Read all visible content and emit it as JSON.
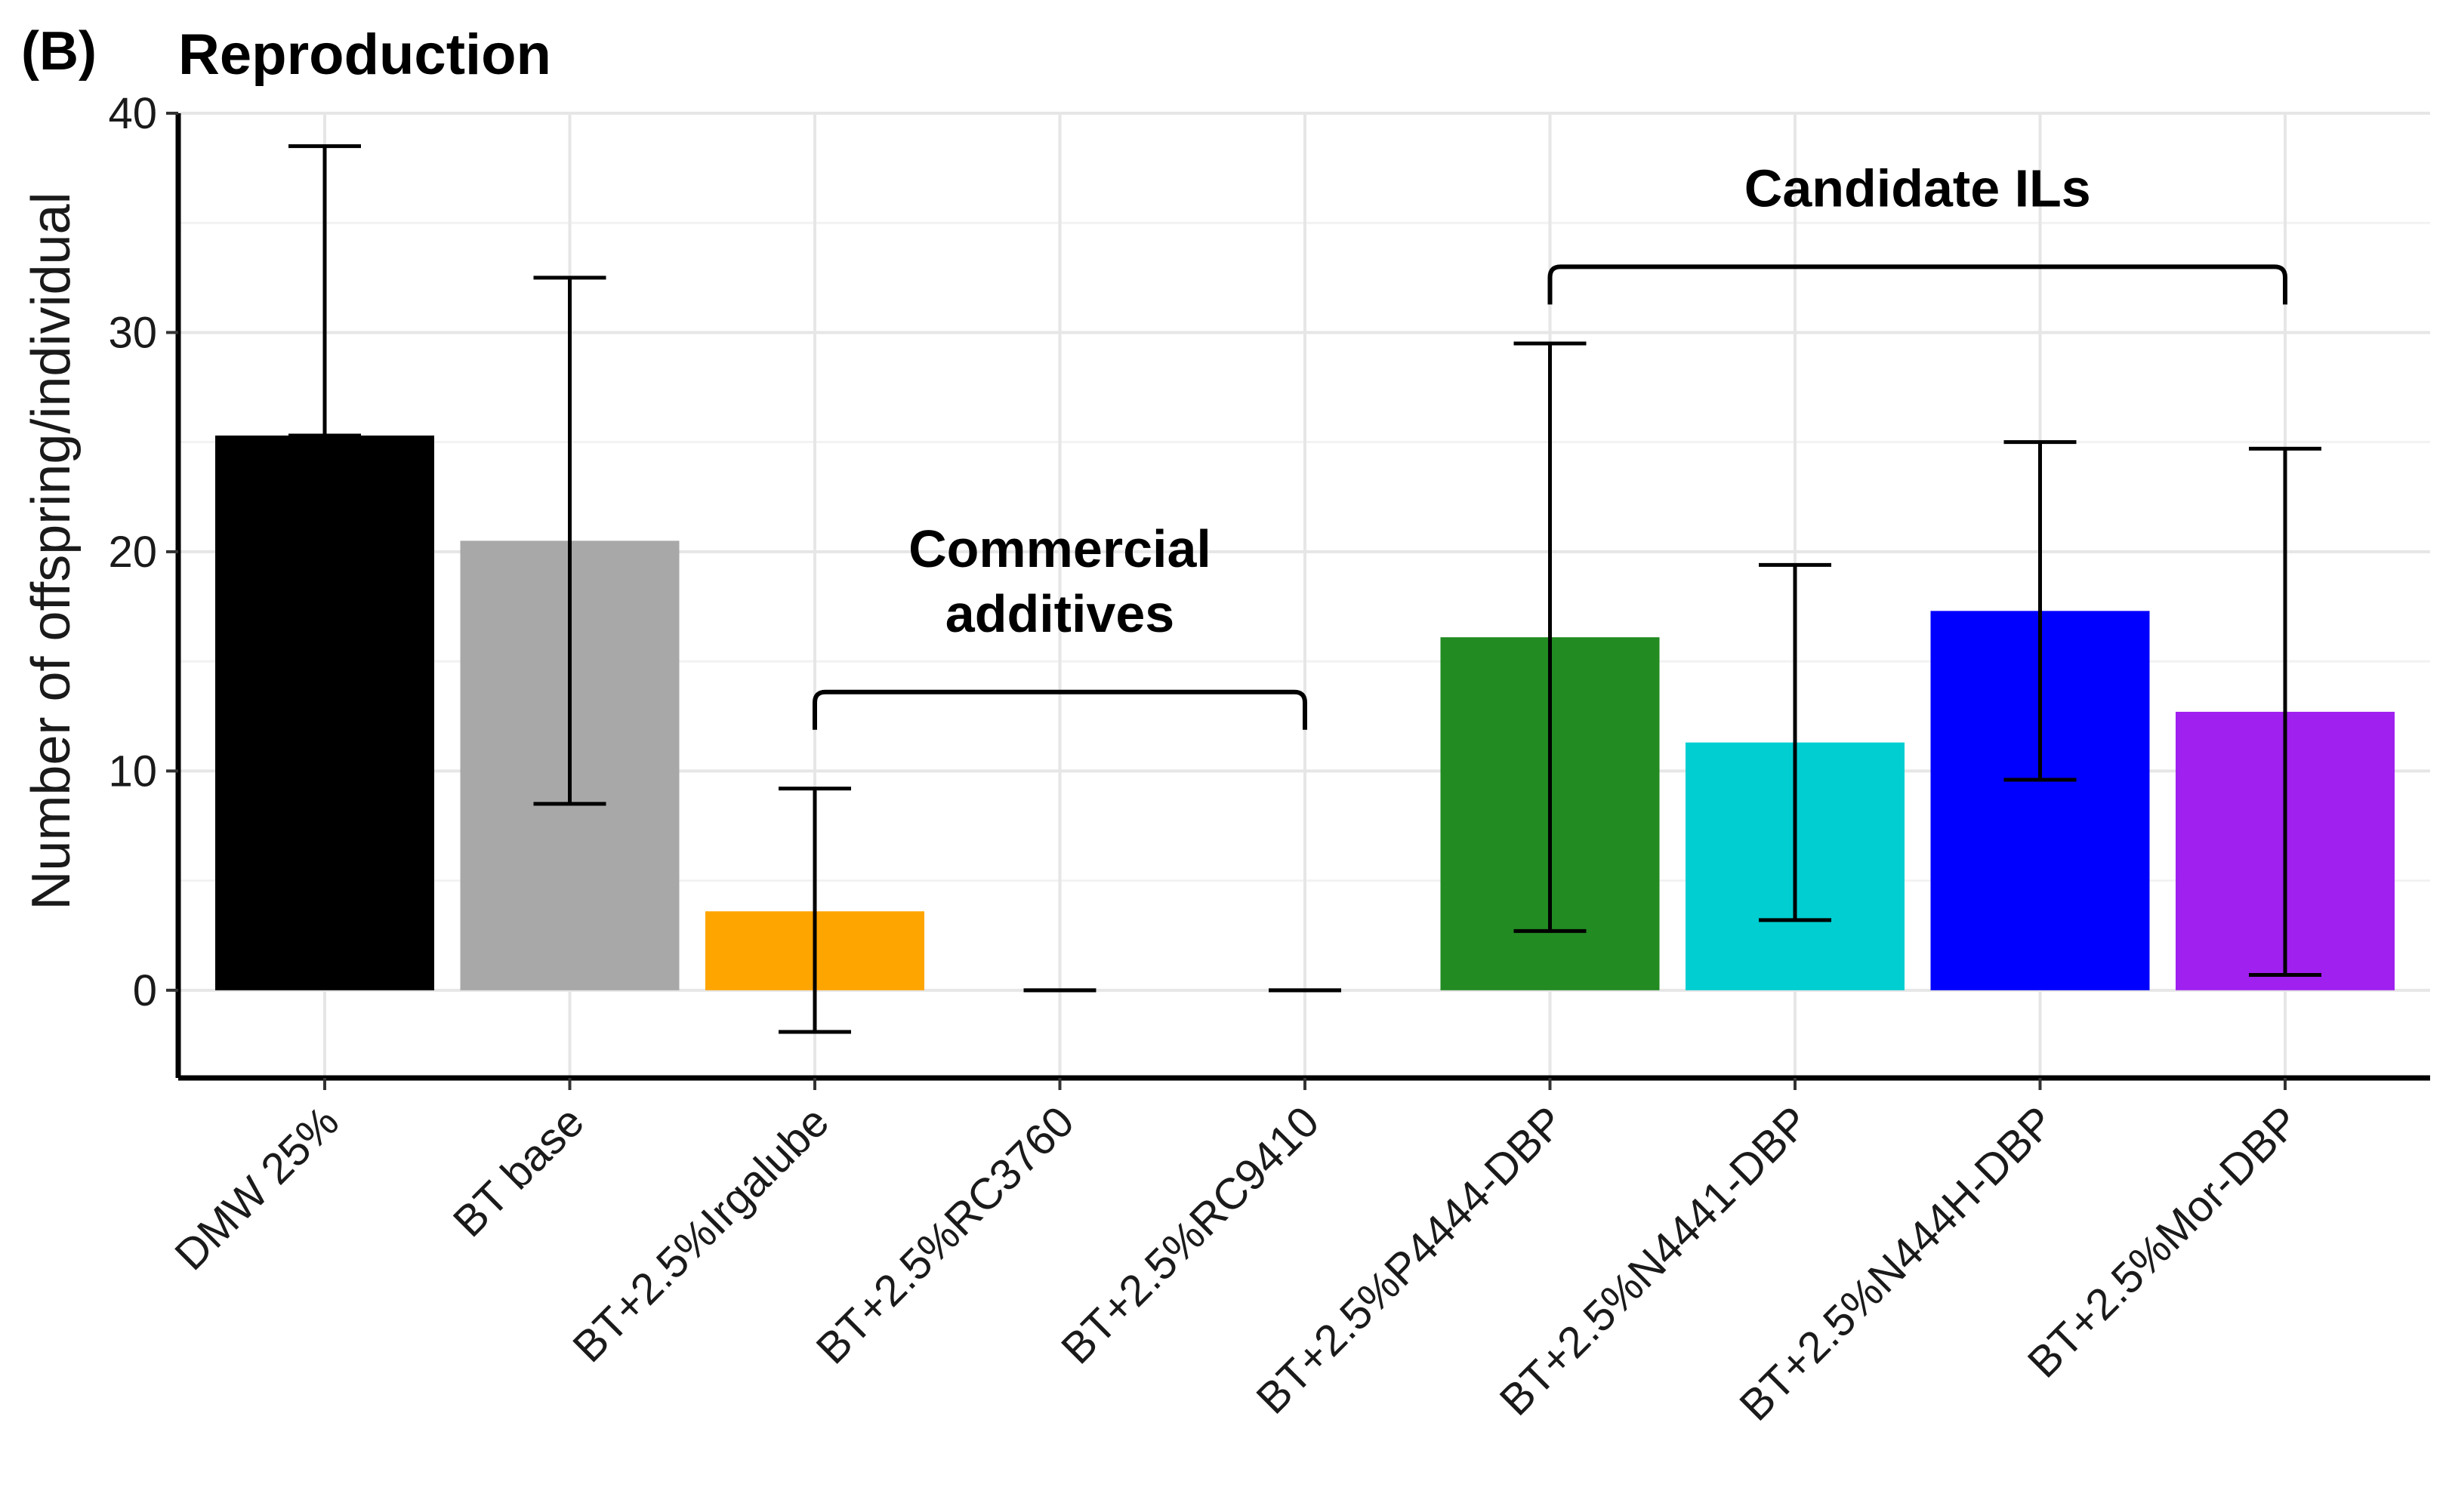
{
  "panel_label": "(B)",
  "chart_data": {
    "type": "bar",
    "title": "Reproduction",
    "xlabel": "",
    "ylabel": "Number of offspring/individual",
    "ylim": [
      -4,
      40
    ],
    "yticks": [
      0,
      10,
      20,
      30,
      40
    ],
    "grid": true,
    "categories": [
      "DMW 25%",
      "BT base",
      "BT+2.5%Irgalube",
      "BT+2.5%RC3760",
      "BT+2.5%RC9410",
      "BT+2.5%P4444-DBP",
      "BT+2.5%N4441-DBP",
      "BT+2.5%N444H-DBP",
      "BT+2.5%Mor-DBP"
    ],
    "values": [
      25.3,
      20.5,
      3.6,
      0,
      0,
      16.1,
      11.3,
      17.3,
      12.7
    ],
    "error_low": [
      25.3,
      8.5,
      -1.9,
      0,
      0,
      2.7,
      3.2,
      9.6,
      0.7
    ],
    "error_high": [
      38.5,
      32.5,
      9.2,
      0,
      0,
      29.5,
      19.4,
      25.0,
      24.7
    ],
    "colors": [
      "#000000",
      "#a8a8a8",
      "#ffa500",
      "#ffffff",
      "#ffffff",
      "#228b22",
      "#00ced1",
      "#0000ff",
      "#a020f0"
    ],
    "annotations": [
      {
        "lines": [
          "Commercial",
          "additives"
        ],
        "from_index": 2,
        "to_index": 4,
        "bracket_y": 13.6
      },
      {
        "lines": [
          "Candidate ILs"
        ],
        "from_index": 5,
        "to_index": 8,
        "bracket_y": 33.0
      }
    ]
  }
}
